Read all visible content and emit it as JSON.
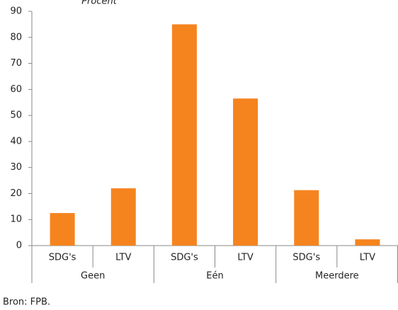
{
  "chart_data": {
    "type": "bar",
    "title": "Procent",
    "categories": [
      "SDG's",
      "LTV",
      "SDG's",
      "LTV",
      "SDG's",
      "LTV"
    ],
    "groups": [
      "Geen",
      "Eén",
      "Meerdere"
    ],
    "values": [
      12.5,
      22,
      85,
      56.5,
      21.3,
      2.4
    ],
    "color": "#f5841f",
    "ylim": [
      0,
      90
    ],
    "yticks": [
      0,
      10,
      20,
      30,
      40,
      50,
      60,
      70,
      80,
      90
    ],
    "grid": false,
    "source": "Bron: FPB."
  }
}
